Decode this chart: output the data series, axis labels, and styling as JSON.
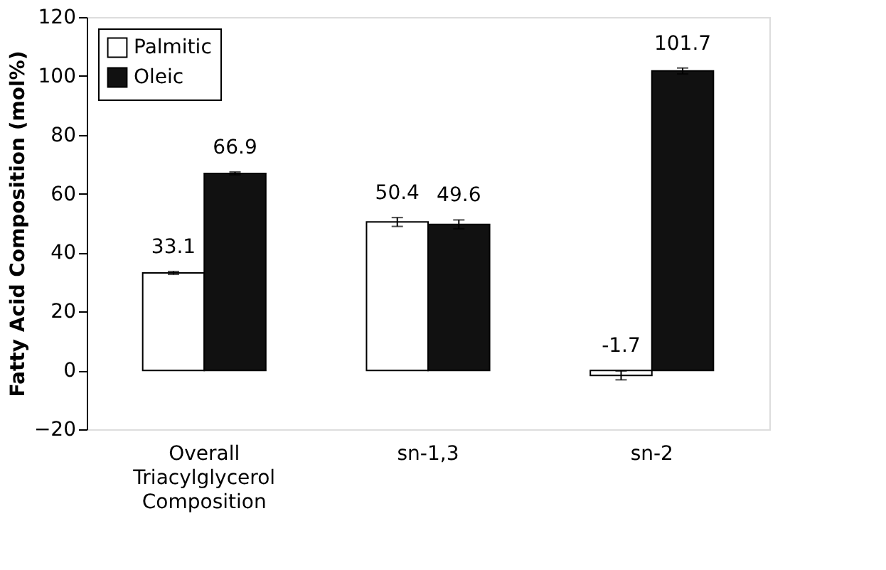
{
  "chart_data": {
    "type": "bar",
    "ylabel": "Fatty Acid Composition (mol%)",
    "categories": [
      "Overall Triacylglycerol Composition",
      "sn-1,3",
      "sn-2"
    ],
    "series": [
      {
        "name": "Palmitic",
        "color": "#ffffff",
        "values": [
          33.1,
          50.4,
          -1.7
        ],
        "errors": [
          0.5,
          1.5,
          1.5
        ]
      },
      {
        "name": "Oleic",
        "color": "#111111",
        "values": [
          66.9,
          49.6,
          101.7
        ],
        "errors": [
          0.5,
          1.5,
          1.0
        ]
      }
    ],
    "ylim": [
      -20,
      120
    ],
    "yticks": [
      -20,
      0,
      20,
      40,
      60,
      80,
      100,
      120
    ],
    "grid": false,
    "legend": "top left",
    "data_labels": true
  }
}
